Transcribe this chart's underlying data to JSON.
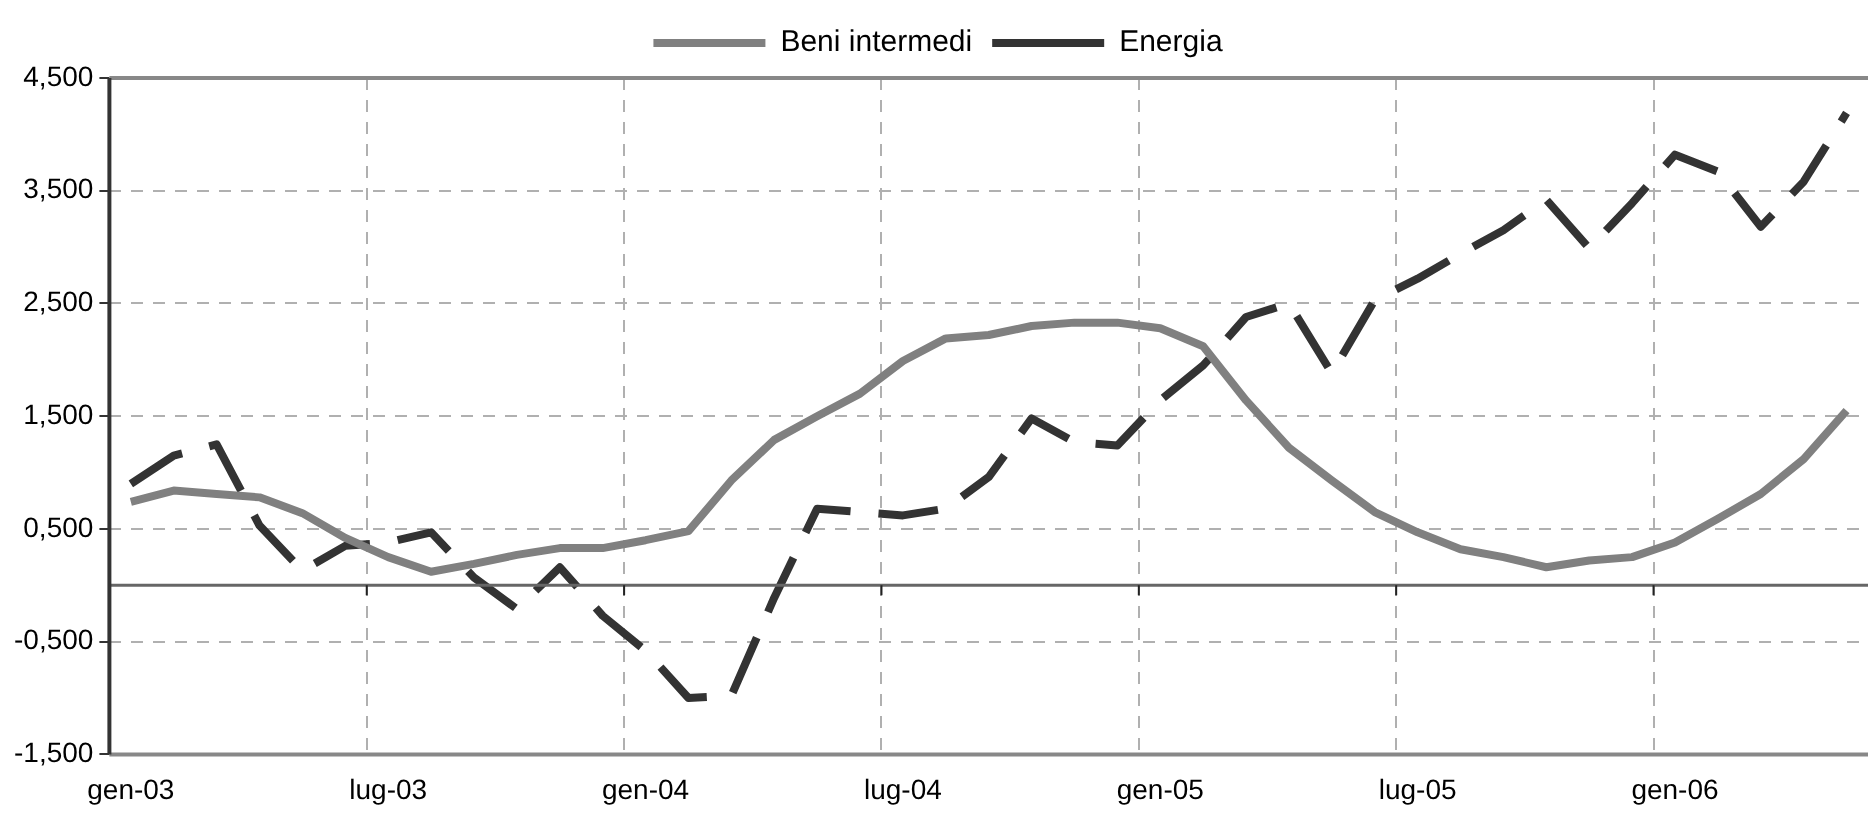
{
  "chart_data": {
    "type": "line",
    "categories": [
      "gen-03",
      null,
      null,
      null,
      null,
      null,
      "lug-03",
      null,
      null,
      null,
      null,
      null,
      "gen-04",
      null,
      null,
      null,
      null,
      null,
      "lug-04",
      null,
      null,
      null,
      null,
      null,
      "gen-05",
      null,
      null,
      null,
      null,
      null,
      "lug-05",
      null,
      null,
      null,
      null,
      null,
      "gen-06",
      null,
      null,
      null,
      null
    ],
    "series": [
      {
        "name": "Beni intermedi",
        "color": "#808080",
        "line_style": "solid",
        "values": [
          0.74,
          0.84,
          0.81,
          0.78,
          0.64,
          0.42,
          0.25,
          0.12,
          0.19,
          0.27,
          0.33,
          0.33,
          0.4,
          0.48,
          0.93,
          1.29,
          1.5,
          1.7,
          1.99,
          2.19,
          2.22,
          2.3,
          2.33,
          2.33,
          2.28,
          2.12,
          1.64,
          1.22,
          0.93,
          0.65,
          0.47,
          0.32,
          0.25,
          0.16,
          0.22,
          0.25,
          0.38,
          0.59,
          0.81,
          1.12,
          1.55
        ]
      },
      {
        "name": "Energia",
        "color": "#333333",
        "line_style": "dashed",
        "values": [
          0.9,
          1.15,
          1.25,
          0.53,
          0.13,
          0.35,
          0.38,
          0.47,
          0.07,
          -0.21,
          0.16,
          -0.27,
          -0.58,
          -1.0,
          -0.98,
          -0.11,
          0.68,
          0.65,
          0.62,
          0.68,
          0.96,
          1.48,
          1.27,
          1.24,
          1.64,
          1.95,
          2.38,
          2.5,
          1.88,
          2.53,
          2.72,
          2.94,
          3.15,
          3.42,
          2.99,
          3.39,
          3.82,
          3.67,
          3.18,
          3.58,
          4.19
        ]
      }
    ],
    "ylim": [
      -1.5,
      4.5
    ],
    "yticks": [
      {
        "value": -1.5,
        "label": "-1,500"
      },
      {
        "value": -0.5,
        "label": "-0,500"
      },
      {
        "value": 0.5,
        "label": "0,500"
      },
      {
        "value": 1.5,
        "label": "1,500"
      },
      {
        "value": 2.5,
        "label": "2,500"
      },
      {
        "value": 3.5,
        "label": "3,500"
      },
      {
        "value": 4.5,
        "label": "4,500"
      }
    ],
    "ref_lines": [
      {
        "axis": "y",
        "value": 0,
        "color": "#666666"
      }
    ],
    "grid": true,
    "legend": "top",
    "marker": "none"
  }
}
